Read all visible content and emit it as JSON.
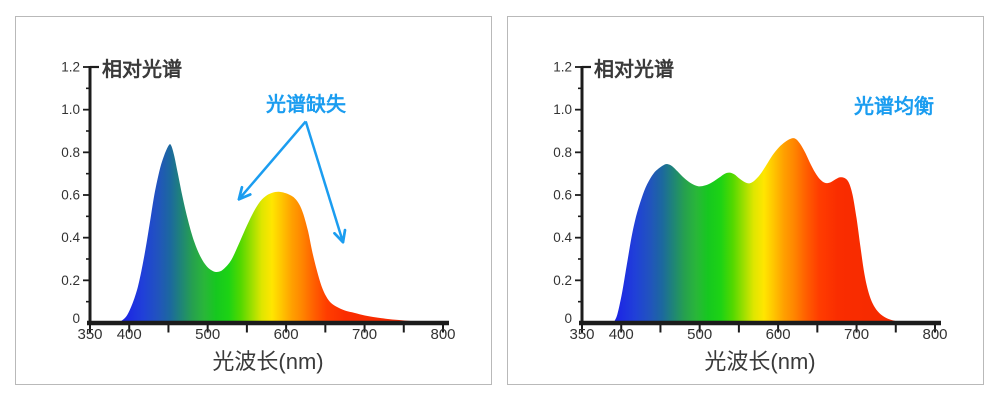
{
  "page": {
    "background": "#ffffff",
    "panel_border_color": "#b9b9b9",
    "axis_color": "#1c1c1c",
    "tick_label_color": "#333333",
    "title_color": "#3a3a3a",
    "annotation_color": "#1b9df0"
  },
  "spectrum_gradient": [
    {
      "nm": 383,
      "color": "#1a1ae0"
    },
    {
      "nm": 400,
      "color": "#1d2ce2"
    },
    {
      "nm": 418,
      "color": "#2040d8"
    },
    {
      "nm": 437,
      "color": "#2154bd"
    },
    {
      "nm": 452,
      "color": "#1c689f"
    },
    {
      "nm": 466,
      "color": "#1f8478"
    },
    {
      "nm": 481,
      "color": "#26a14e"
    },
    {
      "nm": 496,
      "color": "#29b738"
    },
    {
      "nm": 511,
      "color": "#16c81f"
    },
    {
      "nm": 527,
      "color": "#1dd314"
    },
    {
      "nm": 542,
      "color": "#52d800"
    },
    {
      "nm": 556,
      "color": "#9bdf00"
    },
    {
      "nm": 569,
      "color": "#dfe600"
    },
    {
      "nm": 582,
      "color": "#ffe600"
    },
    {
      "nm": 594,
      "color": "#ffc600"
    },
    {
      "nm": 607,
      "color": "#ffa100"
    },
    {
      "nm": 621,
      "color": "#ff8400"
    },
    {
      "nm": 636,
      "color": "#ff5e00"
    },
    {
      "nm": 652,
      "color": "#ff3d00"
    },
    {
      "nm": 676,
      "color": "#fa2d00"
    },
    {
      "nm": 800,
      "color": "#f02600"
    }
  ],
  "chart_data": [
    {
      "type": "area",
      "title": "相对光谱",
      "xlabel": "光波长(nm)",
      "ylabel": "",
      "xlim": [
        350,
        800
      ],
      "ylim": [
        0,
        1.2
      ],
      "x_ticks": [
        350,
        400,
        450,
        500,
        550,
        600,
        650,
        700,
        750,
        800
      ],
      "x_tick_labels": [
        "350",
        "400",
        "500",
        "600",
        "700",
        "800"
      ],
      "x_tick_label_values": [
        350,
        400,
        500,
        600,
        700,
        800
      ],
      "y_major_ticks": [
        0.2,
        0.4,
        0.6,
        0.8,
        1.0,
        1.2
      ],
      "y_minor_ticks": [
        0.1,
        0.3,
        0.5,
        0.7,
        0.9,
        1.1
      ],
      "y_tick_labels": [
        "0",
        "0.2",
        "0.4",
        "0.6",
        "0.8",
        "1.0",
        "1.2"
      ],
      "y_tick_label_values": [
        0,
        0.2,
        0.4,
        0.6,
        0.8,
        1.0,
        1.2
      ],
      "grid": false,
      "annotation": {
        "text": "光谱缺失",
        "color": "#1b9df0"
      },
      "arrows": [
        {
          "from_nm": 625,
          "from_val": 0.945,
          "to_nm": 541,
          "to_val": 0.585
        },
        {
          "from_nm": 625,
          "from_val": 0.945,
          "to_nm": 672,
          "to_val": 0.385
        }
      ],
      "points": [
        [
          383,
          0
        ],
        [
          390,
          0.01
        ],
        [
          397,
          0.035
        ],
        [
          404,
          0.09
        ],
        [
          411,
          0.17
        ],
        [
          418,
          0.29
        ],
        [
          425,
          0.44
        ],
        [
          432,
          0.6
        ],
        [
          439,
          0.72
        ],
        [
          445,
          0.79
        ],
        [
          450,
          0.83
        ],
        [
          453,
          0.835
        ],
        [
          457,
          0.79
        ],
        [
          462,
          0.7
        ],
        [
          468,
          0.59
        ],
        [
          475,
          0.48
        ],
        [
          483,
          0.38
        ],
        [
          491,
          0.31
        ],
        [
          499,
          0.265
        ],
        [
          507,
          0.243
        ],
        [
          514,
          0.24
        ],
        [
          521,
          0.255
        ],
        [
          530,
          0.295
        ],
        [
          539,
          0.365
        ],
        [
          548,
          0.44
        ],
        [
          557,
          0.51
        ],
        [
          566,
          0.565
        ],
        [
          574,
          0.595
        ],
        [
          582,
          0.61
        ],
        [
          590,
          0.615
        ],
        [
          598,
          0.61
        ],
        [
          605,
          0.6
        ],
        [
          611,
          0.585
        ],
        [
          617,
          0.555
        ],
        [
          622,
          0.51
        ],
        [
          628,
          0.43
        ],
        [
          633,
          0.34
        ],
        [
          639,
          0.25
        ],
        [
          645,
          0.175
        ],
        [
          651,
          0.125
        ],
        [
          657,
          0.095
        ],
        [
          665,
          0.075
        ],
        [
          674,
          0.06
        ],
        [
          684,
          0.05
        ],
        [
          697,
          0.038
        ],
        [
          711,
          0.028
        ],
        [
          727,
          0.02
        ],
        [
          744,
          0.014
        ],
        [
          761,
          0.009
        ],
        [
          778,
          0.005
        ],
        [
          795,
          0.002
        ],
        [
          800,
          0.001
        ]
      ]
    },
    {
      "type": "area",
      "title": "相对光谱",
      "xlabel": "光波长(nm)",
      "ylabel": "",
      "xlim": [
        350,
        800
      ],
      "ylim": [
        0,
        1.2
      ],
      "x_ticks": [
        350,
        400,
        450,
        500,
        550,
        600,
        650,
        700,
        750,
        800
      ],
      "x_tick_labels": [
        "350",
        "400",
        "500",
        "600",
        "700",
        "800"
      ],
      "x_tick_label_values": [
        350,
        400,
        500,
        600,
        700,
        800
      ],
      "y_major_ticks": [
        0.2,
        0.4,
        0.6,
        0.8,
        1.0,
        1.2
      ],
      "y_minor_ticks": [
        0.1,
        0.3,
        0.5,
        0.7,
        0.9,
        1.1
      ],
      "y_tick_labels": [
        "0",
        "0.2",
        "0.4",
        "0.6",
        "0.8",
        "1.0",
        "1.2"
      ],
      "y_tick_label_values": [
        0,
        0.2,
        0.4,
        0.6,
        0.8,
        1.0,
        1.2
      ],
      "grid": false,
      "annotation": {
        "text": "光谱均衡",
        "color": "#1b9df0"
      },
      "arrows": [],
      "points": [
        [
          390,
          0
        ],
        [
          395,
          0.04
        ],
        [
          401,
          0.14
        ],
        [
          407,
          0.27
        ],
        [
          413,
          0.4
        ],
        [
          419,
          0.5
        ],
        [
          426,
          0.585
        ],
        [
          433,
          0.65
        ],
        [
          441,
          0.7
        ],
        [
          448,
          0.725
        ],
        [
          454,
          0.74
        ],
        [
          459,
          0.745
        ],
        [
          465,
          0.735
        ],
        [
          472,
          0.71
        ],
        [
          480,
          0.68
        ],
        [
          489,
          0.655
        ],
        [
          498,
          0.641
        ],
        [
          507,
          0.645
        ],
        [
          516,
          0.66
        ],
        [
          525,
          0.682
        ],
        [
          532,
          0.7
        ],
        [
          538,
          0.705
        ],
        [
          544,
          0.697
        ],
        [
          551,
          0.676
        ],
        [
          558,
          0.659
        ],
        [
          564,
          0.655
        ],
        [
          570,
          0.668
        ],
        [
          577,
          0.696
        ],
        [
          585,
          0.74
        ],
        [
          593,
          0.787
        ],
        [
          601,
          0.823
        ],
        [
          609,
          0.849
        ],
        [
          616,
          0.864
        ],
        [
          622,
          0.864
        ],
        [
          628,
          0.84
        ],
        [
          635,
          0.795
        ],
        [
          642,
          0.74
        ],
        [
          649,
          0.695
        ],
        [
          655,
          0.668
        ],
        [
          661,
          0.656
        ],
        [
          667,
          0.66
        ],
        [
          673,
          0.673
        ],
        [
          679,
          0.683
        ],
        [
          685,
          0.679
        ],
        [
          690,
          0.659
        ],
        [
          695,
          0.6
        ],
        [
          700,
          0.49
        ],
        [
          705,
          0.355
        ],
        [
          710,
          0.23
        ],
        [
          716,
          0.135
        ],
        [
          723,
          0.075
        ],
        [
          731,
          0.04
        ],
        [
          740,
          0.02
        ],
        [
          750,
          0.009
        ],
        [
          760,
          0.003
        ],
        [
          768,
          0
        ]
      ]
    }
  ]
}
